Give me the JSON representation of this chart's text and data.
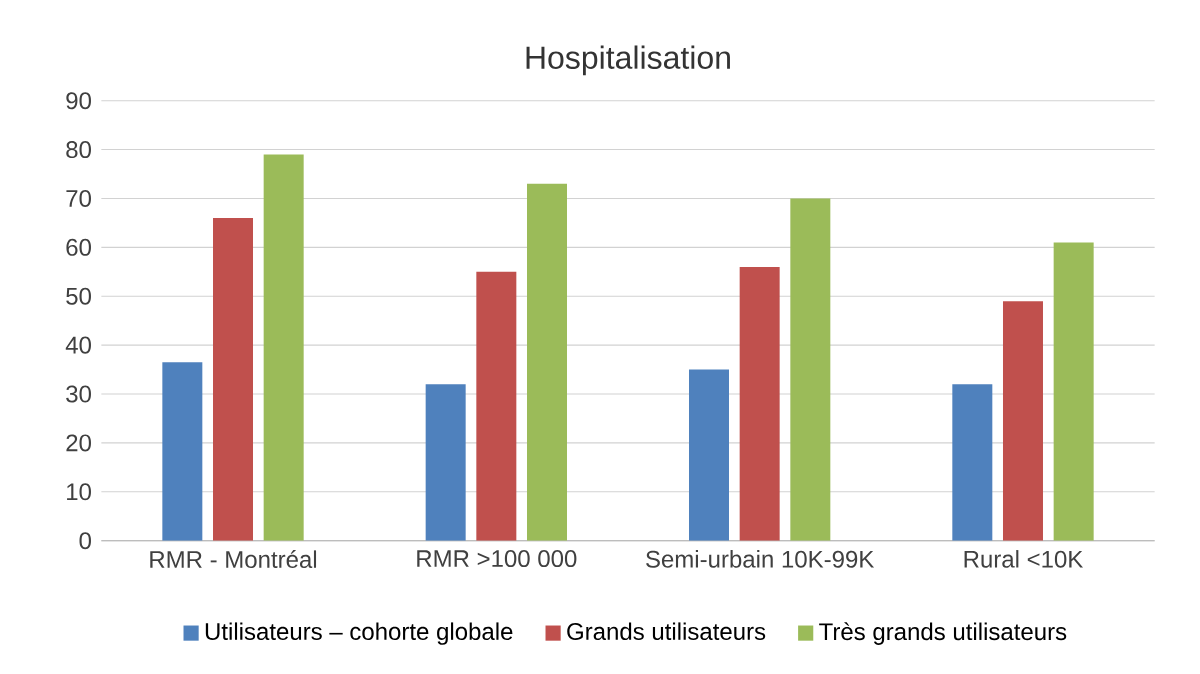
{
  "chart_data": {
    "type": "bar",
    "title": "Hospitalisation",
    "categories": [
      "RMR - Montréal",
      "RMR >100 000",
      "Semi-urbain 10K-99K",
      "Rural <10K"
    ],
    "series": [
      {
        "name": "Utilisateurs – cohorte globale",
        "color": "#4f81bd",
        "values": [
          36.5,
          32,
          35,
          32
        ]
      },
      {
        "name": "Grands utilisateurs",
        "color": "#c0504d",
        "values": [
          66,
          55,
          56,
          49
        ]
      },
      {
        "name": "Très grands utilisateurs",
        "color": "#9bbb59",
        "values": [
          79,
          73,
          70,
          61
        ]
      }
    ],
    "ylim": [
      0,
      90
    ],
    "yticks": [
      0,
      10,
      20,
      30,
      40,
      50,
      60,
      70,
      80,
      90
    ],
    "grid": "y",
    "legend": "bottom"
  }
}
